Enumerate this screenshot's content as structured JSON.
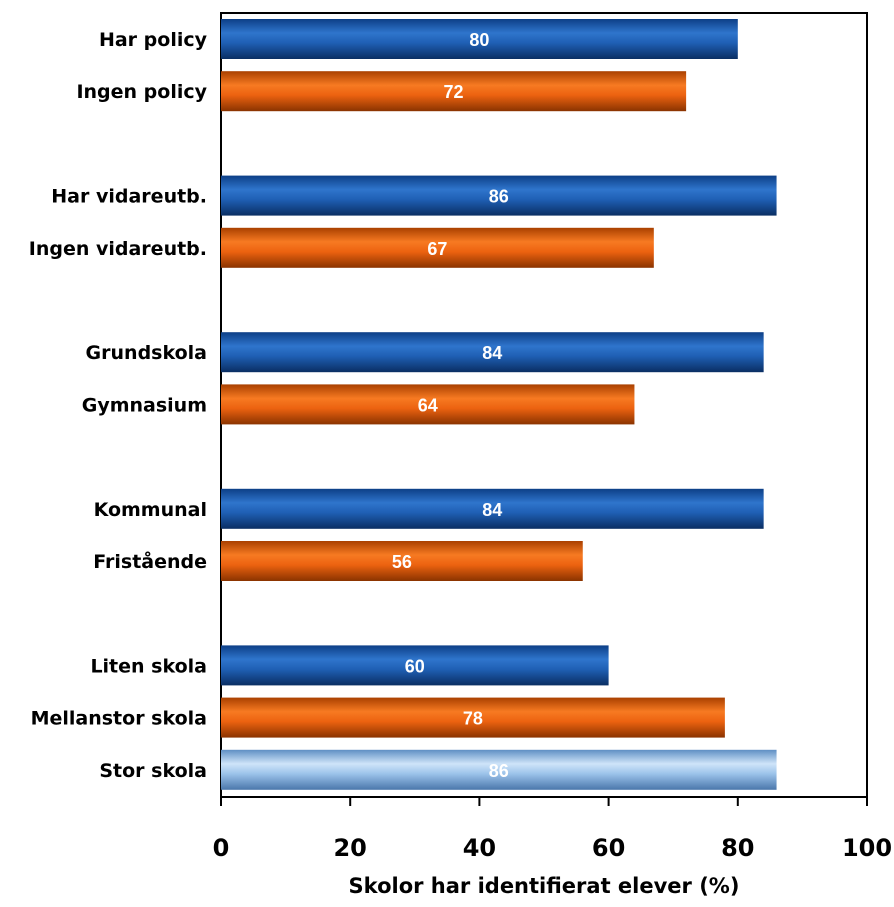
{
  "chart_data": {
    "type": "bar",
    "orientation": "horizontal",
    "categories": [
      "Har policy",
      "Ingen policy",
      "Har vidareutb.",
      "Ingen vidareutb.",
      "Grundskola",
      "Gymnasium",
      "Kommunal",
      "Fristående",
      "Liten skola",
      "Mellanstor skola",
      "Stor skola"
    ],
    "groups": [
      2,
      2,
      2,
      2,
      3
    ],
    "values": [
      80,
      72,
      86,
      67,
      84,
      64,
      84,
      56,
      60,
      78,
      86
    ],
    "value_labels": [
      "80",
      "72",
      "86",
      "67",
      "84",
      "64",
      "84",
      "56",
      "60",
      "78",
      "86"
    ],
    "bar_colors": [
      "#1f5fb4",
      "#ec6210",
      "#1f5fb4",
      "#ec6210",
      "#1f5fb4",
      "#ec6210",
      "#1f5fb4",
      "#ec6210",
      "#1f5fb4",
      "#ec6210",
      "#9cc3ea"
    ],
    "xlabel": "Skolor har identifierat elever (%)",
    "xlim": [
      0,
      100
    ],
    "xticks": [
      "0",
      "20",
      "40",
      "60",
      "80",
      "100"
    ],
    "grid": false,
    "legend": "none"
  }
}
